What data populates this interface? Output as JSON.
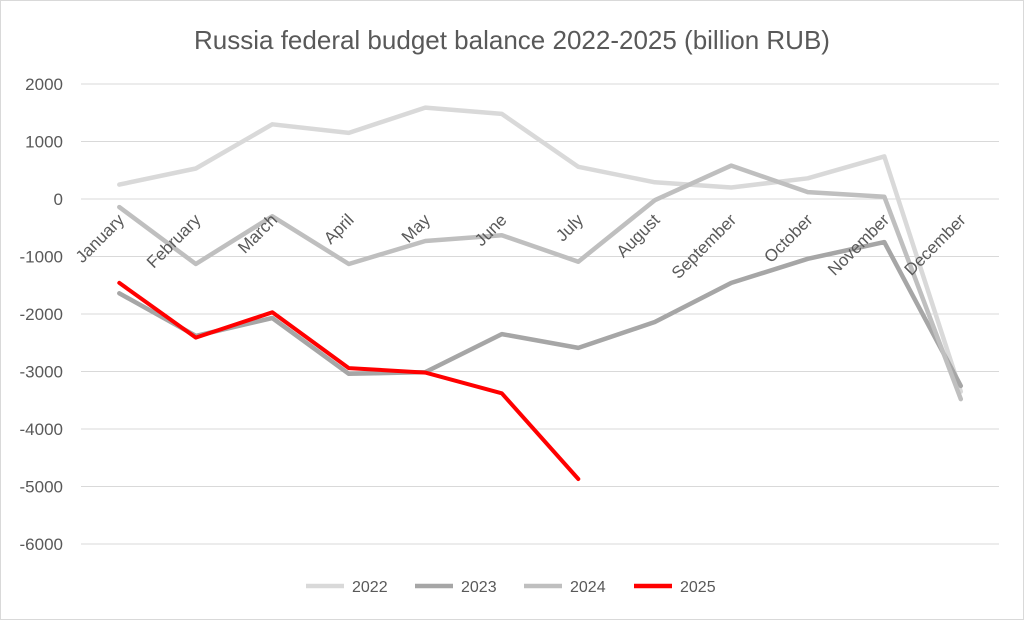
{
  "chart_data": {
    "type": "line",
    "title": "Russia federal budget balance 2022-2025  (billion RUB)",
    "categories": [
      "January",
      "February",
      "March",
      "April",
      "May",
      "June",
      "July",
      "August",
      "September",
      "October",
      "November",
      "December"
    ],
    "ylim": [
      -6000,
      2000
    ],
    "yticks": [
      2000,
      1000,
      0,
      -1000,
      -2000,
      -3000,
      -4000,
      -5000,
      -6000
    ],
    "grid": true,
    "legend_position": "bottom",
    "series": [
      {
        "name": "2022",
        "color": "#d9d9d9",
        "values": [
          250,
          530,
          1300,
          1150,
          1590,
          1480,
          560,
          290,
          200,
          360,
          740,
          -3350
        ]
      },
      {
        "name": "2023",
        "color": "#a6a6a6",
        "values": [
          -1640,
          -2380,
          -2070,
          -3040,
          -3010,
          -2350,
          -2590,
          -2140,
          -1460,
          -1040,
          -750,
          -3250
        ]
      },
      {
        "name": "2024",
        "color": "#bfbfbf",
        "values": [
          -140,
          -1130,
          -300,
          -1130,
          -730,
          -630,
          -1090,
          -20,
          580,
          120,
          40,
          -3480
        ]
      },
      {
        "name": "2025",
        "color": "#ff0000",
        "values": [
          -1460,
          -2410,
          -1970,
          -2940,
          -3020,
          -3380,
          -4870,
          null,
          null,
          null,
          null,
          null
        ]
      }
    ]
  }
}
